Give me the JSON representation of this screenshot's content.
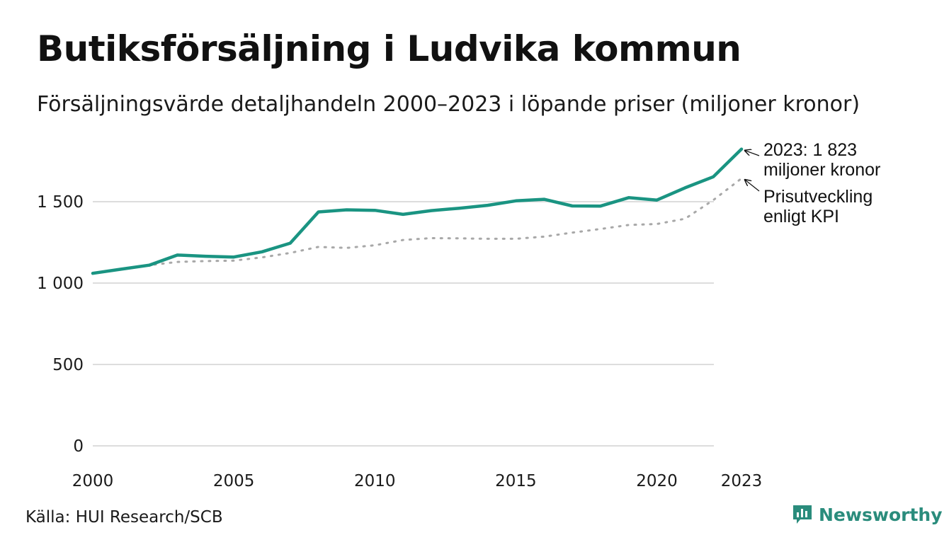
{
  "header": {
    "title": "Butiksförsäljning i Ludvika kommun",
    "subtitle": "Försäljningsvärde detaljhandeln 2000–2023 i löpande priser (miljoner kronor)"
  },
  "footer": {
    "source": "Källa: HUI Research/SCB",
    "brand": "Newsworthy",
    "brand_icon": "newsworthy-logo-icon"
  },
  "colors": {
    "sales": "#1a9482",
    "kpi": "#a8a8a8",
    "grid": "#dddddd",
    "brand": "#2a8c7c"
  },
  "chart_data": {
    "type": "line",
    "title": "Butiksförsäljning i Ludvika kommun",
    "xlabel": "",
    "ylabel": "",
    "ylim": [
      0,
      1850
    ],
    "yticks": [
      0,
      500,
      1000,
      1500
    ],
    "ytick_labels": [
      "0",
      "500",
      "1 000",
      "1 500"
    ],
    "xticks": [
      2000,
      2005,
      2010,
      2015,
      2020,
      2023
    ],
    "xtick_labels": [
      "2000",
      "2005",
      "2010",
      "2015",
      "2020",
      "2023"
    ],
    "x": [
      2000,
      2001,
      2002,
      2003,
      2004,
      2005,
      2006,
      2007,
      2008,
      2009,
      2010,
      2011,
      2012,
      2013,
      2014,
      2015,
      2016,
      2017,
      2018,
      2019,
      2020,
      2021,
      2022,
      2023
    ],
    "series": [
      {
        "name": "Butiksförsäljning",
        "style": "solid",
        "values": [
          1060,
          1085,
          1110,
          1172,
          1165,
          1160,
          1192,
          1245,
          1437,
          1450,
          1447,
          1422,
          1445,
          1460,
          1478,
          1505,
          1515,
          1474,
          1473,
          1525,
          1510,
          1585,
          1653,
          1823
        ]
      },
      {
        "name": "Prisutveckling enligt KPI",
        "style": "dotted",
        "values": [
          1060,
          1085,
          1110,
          1130,
          1135,
          1138,
          1158,
          1185,
          1222,
          1216,
          1232,
          1265,
          1276,
          1275,
          1272,
          1272,
          1285,
          1310,
          1332,
          1357,
          1363,
          1395,
          1510,
          1643
        ]
      }
    ],
    "annotations": [
      {
        "lines": [
          "2023: 1 823",
          "miljoner kronor"
        ],
        "series": 0,
        "x": 2023
      },
      {
        "lines": [
          "Prisutveckling",
          "enligt KPI"
        ],
        "series": 1,
        "x": 2023
      }
    ]
  }
}
